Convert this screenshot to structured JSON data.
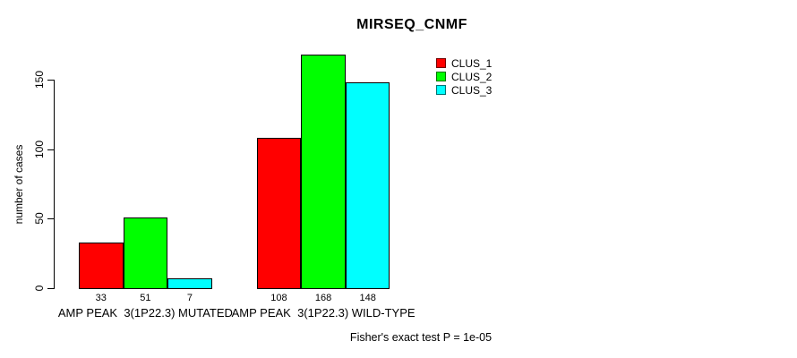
{
  "title": "MIRSEQ_CNMF",
  "y_axis_label": "number of cases",
  "footer_caption": "Fisher's exact test P = 1e-05",
  "legend": {
    "position": "top-right",
    "items": [
      {
        "label": "CLUS_1",
        "color": "#ff0000"
      },
      {
        "label": "CLUS_2",
        "color": "#00ff00"
      },
      {
        "label": "CLUS_3",
        "color": "#00ffff"
      }
    ]
  },
  "chart_data": {
    "type": "bar",
    "title": "MIRSEQ_CNMF",
    "categories": [
      "AMP PEAK  3(1P22.3) MUTATED",
      "AMP PEAK  3(1P22.3) WILD-TYPE"
    ],
    "series": [
      {
        "name": "CLUS_1",
        "color": "#ff0000",
        "values": [
          33,
          108
        ]
      },
      {
        "name": "CLUS_2",
        "color": "#00ff00",
        "values": [
          51,
          168
        ]
      },
      {
        "name": "CLUS_3",
        "color": "#00ffff",
        "values": [
          7,
          148
        ]
      }
    ],
    "bar_value_labels": [
      [
        "33",
        "51",
        "7"
      ],
      [
        "108",
        "168",
        "148"
      ]
    ],
    "xlabel": "",
    "ylabel": "number of cases",
    "yticks": [
      0,
      50,
      100,
      150
    ],
    "ylim": [
      0,
      175
    ],
    "grid": false,
    "legend_position": "top-right",
    "annotation": "Fisher's exact test P = 1e-05"
  }
}
